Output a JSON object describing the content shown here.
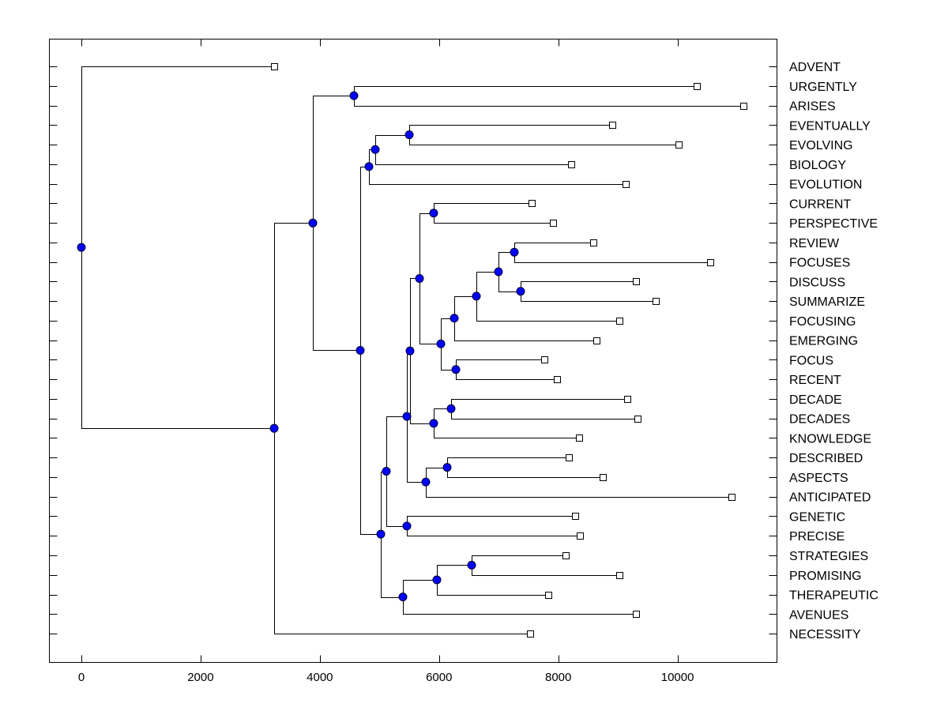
{
  "chart_data": {
    "type": "dendrogram",
    "title": "",
    "xlabel": "",
    "ylabel": "",
    "xlim": [
      -550,
      11600
    ],
    "xticks": [
      0,
      2000,
      4000,
      6000,
      8000,
      10000
    ],
    "xtick_labels": [
      "0",
      "2000",
      "4000",
      "6000",
      "8000",
      "10000"
    ],
    "grid": false,
    "node_color": "#0000ff",
    "leaf_marker": "square",
    "leaves": [
      {
        "label": "ADVENT",
        "x": 3234
      },
      {
        "label": "URGENTLY",
        "x": 10323
      },
      {
        "label": "ARISES",
        "x": 11105
      },
      {
        "label": "EVENTUALLY",
        "x": 8905
      },
      {
        "label": "EVOLVING",
        "x": 10018
      },
      {
        "label": "BIOLOGY",
        "x": 8216
      },
      {
        "label": "EVOLUTION",
        "x": 9131
      },
      {
        "label": "CURRENT",
        "x": 7554
      },
      {
        "label": "PERSPECTIVE",
        "x": 7912
      },
      {
        "label": "REVIEW",
        "x": 8587
      },
      {
        "label": "FOCUSES",
        "x": 10549
      },
      {
        "label": "DISCUSS",
        "x": 9303
      },
      {
        "label": "SUMMARIZE",
        "x": 9634
      },
      {
        "label": "FOCUSING",
        "x": 9025
      },
      {
        "label": "EMERGING",
        "x": 8640
      },
      {
        "label": "FOCUS",
        "x": 7766
      },
      {
        "label": "RECENT",
        "x": 7978
      },
      {
        "label": "DECADE",
        "x": 9157
      },
      {
        "label": "DECADES",
        "x": 9329
      },
      {
        "label": "KNOWLEDGE",
        "x": 8349
      },
      {
        "label": "DESCRIBED",
        "x": 8177
      },
      {
        "label": "ASPECTS",
        "x": 8746
      },
      {
        "label": "ANTICIPATED",
        "x": 10906
      },
      {
        "label": "GENETIC",
        "x": 8283
      },
      {
        "label": "PRECISE",
        "x": 8362
      },
      {
        "label": "STRATEGIES",
        "x": 8124
      },
      {
        "label": "PROMISING",
        "x": 9025
      },
      {
        "label": "THERAPEUTIC",
        "x": 7832
      },
      {
        "label": "AVENUES",
        "x": 9303
      },
      {
        "label": "NECESSITY",
        "x": 7527
      }
    ],
    "tree": {
      "x": 0,
      "children": [
        {
          "leaf": 0
        },
        {
          "x": 3234,
          "children": [
            {
              "x": 3883,
              "children": [
                {
                  "x": 4572,
                  "children": [
                    {
                      "leaf": 1
                    },
                    {
                      "leaf": 2
                    }
                  ]
                },
                {
                  "x": 4678,
                  "children": [
                    {
                      "x": 4824,
                      "children": [
                        {
                          "x": 4930,
                          "children": [
                            {
                              "x": 5500,
                              "children": [
                                {
                                  "leaf": 3
                                },
                                {
                                  "leaf": 4
                                }
                              ]
                            },
                            {
                              "leaf": 5
                            }
                          ]
                        },
                        {
                          "leaf": 6
                        }
                      ]
                    },
                    {
                      "x": 5023,
                      "children": [
                        {
                          "x": 5115,
                          "children": [
                            {
                              "x": 5460,
                              "children": [
                                {
                                  "x": 5513,
                                  "children": [
                                    {
                                      "x": 5672,
                                      "children": [
                                        {
                                          "x": 5910,
                                          "children": [
                                            {
                                              "leaf": 7
                                            },
                                            {
                                              "leaf": 8
                                            }
                                          ]
                                        },
                                        {
                                          "x": 6030,
                                          "children": [
                                            {
                                              "x": 6255,
                                              "children": [
                                                {
                                                  "x": 6626,
                                                  "children": [
                                                    {
                                                      "x": 6997,
                                                      "children": [
                                                        {
                                                          "x": 7262,
                                                          "children": [
                                                            {
                                                              "leaf": 9
                                                            },
                                                            {
                                                              "leaf": 10
                                                            }
                                                          ]
                                                        },
                                                        {
                                                          "x": 7368,
                                                          "children": [
                                                            {
                                                              "leaf": 11
                                                            },
                                                            {
                                                              "leaf": 12
                                                            }
                                                          ]
                                                        }
                                                      ]
                                                    },
                                                    {
                                                      "leaf": 13
                                                    }
                                                  ]
                                                },
                                                {
                                                  "leaf": 14
                                                }
                                              ]
                                            },
                                            {
                                              "x": 6282,
                                              "children": [
                                                {
                                                  "leaf": 15
                                                },
                                                {
                                                  "leaf": 16
                                                }
                                              ]
                                            }
                                          ]
                                        }
                                      ]
                                    },
                                    {
                                      "x": 5910,
                                      "children": [
                                        {
                                          "x": 6202,
                                          "children": [
                                            {
                                              "leaf": 17
                                            },
                                            {
                                              "leaf": 18
                                            }
                                          ]
                                        },
                                        {
                                          "leaf": 19
                                        }
                                      ]
                                    }
                                  ]
                                },
                                {
                                  "x": 5778,
                                  "children": [
                                    {
                                      "x": 6136,
                                      "children": [
                                        {
                                          "leaf": 20
                                        },
                                        {
                                          "leaf": 21
                                        }
                                      ]
                                    },
                                    {
                                      "leaf": 22
                                    }
                                  ]
                                }
                              ]
                            },
                            {
                              "x": 5460,
                              "children": [
                                {
                                  "leaf": 23
                                },
                                {
                                  "leaf": 24
                                }
                              ]
                            }
                          ]
                        },
                        {
                          "x": 5394,
                          "children": [
                            {
                              "x": 5963,
                              "children": [
                                {
                                  "x": 6547,
                                  "children": [
                                    {
                                      "leaf": 25
                                    },
                                    {
                                      "leaf": 26
                                    }
                                  ]
                                },
                                {
                                  "leaf": 27
                                }
                              ]
                            },
                            {
                              "leaf": 28
                            }
                          ]
                        }
                      ]
                    }
                  ]
                }
              ]
            },
            {
              "leaf": 29
            }
          ]
        }
      ]
    }
  }
}
